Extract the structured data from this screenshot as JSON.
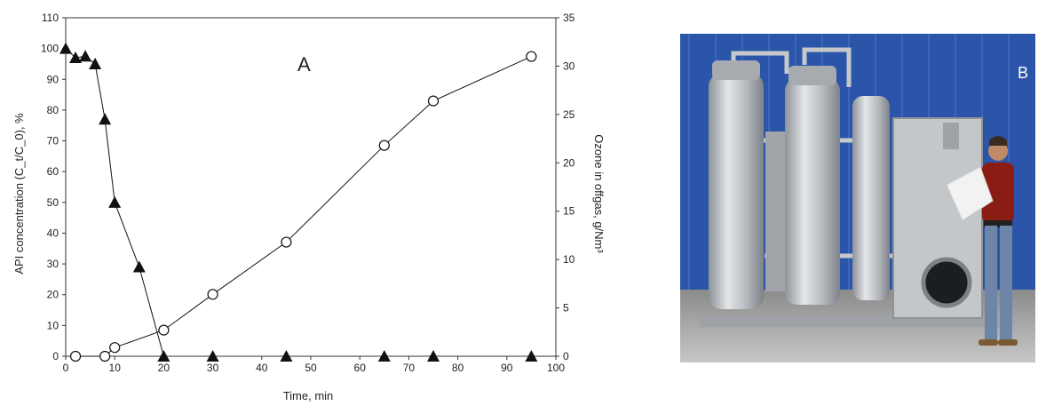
{
  "chart_data": {
    "type": "line",
    "panel_label": "A",
    "xlabel": "Time, min",
    "ylabel_left": "API concentration (C_t/C_0), %",
    "ylabel_right": "Ozone in offgas, g/Nm³",
    "xlim": [
      0,
      100
    ],
    "ylim_left": [
      0,
      110
    ],
    "ylim_right": [
      0,
      35
    ],
    "x_ticks": [
      0,
      10,
      20,
      30,
      40,
      50,
      60,
      70,
      80,
      90,
      100
    ],
    "y_left_ticks": [
      0,
      10,
      20,
      30,
      40,
      50,
      60,
      70,
      80,
      90,
      100,
      110
    ],
    "y_right_ticks": [
      0,
      5,
      10,
      15,
      20,
      25,
      30,
      35
    ],
    "grid": false,
    "series": [
      {
        "marker": "filled-triangle",
        "axis": "left",
        "x": [
          0,
          2,
          4,
          6,
          8,
          10,
          15,
          20,
          30,
          45,
          65,
          75,
          95
        ],
        "y": [
          100,
          97,
          97.5,
          95,
          77,
          50,
          29,
          0,
          0,
          0,
          0,
          0,
          0
        ],
        "connected_through_index": 7
      },
      {
        "marker": "open-circle",
        "axis": "right",
        "x": [
          2,
          8,
          10,
          20,
          30,
          45,
          65,
          75,
          95
        ],
        "y": [
          0,
          0,
          0.9,
          2.7,
          6.4,
          11.8,
          21.8,
          26.4,
          31
        ]
      }
    ]
  },
  "photo": {
    "panel_label": "B",
    "colors": {
      "wall": "#2a55a8",
      "steel": "#b9bdc2",
      "floor": "#9a9a9a",
      "shirt": "#8a1c14",
      "jeans": "#6d86a8"
    }
  }
}
